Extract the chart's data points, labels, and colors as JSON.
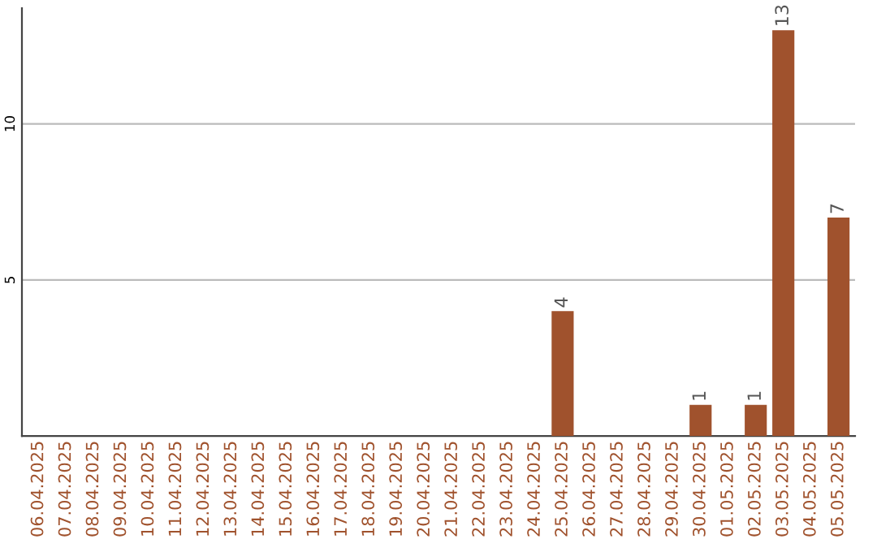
{
  "chart_data": {
    "type": "bar",
    "categories": [
      "06.04.2025",
      "07.04.2025",
      "08.04.2025",
      "09.04.2025",
      "10.04.2025",
      "11.04.2025",
      "12.04.2025",
      "13.04.2025",
      "14.04.2025",
      "15.04.2025",
      "16.04.2025",
      "17.04.2025",
      "18.04.2025",
      "19.04.2025",
      "20.04.2025",
      "21.04.2025",
      "22.04.2025",
      "23.04.2025",
      "24.04.2025",
      "25.04.2025",
      "26.04.2025",
      "27.04.2025",
      "28.04.2025",
      "29.04.2025",
      "30.04.2025",
      "01.05.2025",
      "02.05.2025",
      "03.05.2025",
      "04.05.2025",
      "05.05.2025"
    ],
    "values": [
      0,
      0,
      0,
      0,
      0,
      0,
      0,
      0,
      0,
      0,
      0,
      0,
      0,
      0,
      0,
      0,
      0,
      0,
      0,
      4,
      0,
      0,
      0,
      0,
      1,
      0,
      1,
      13,
      0,
      7
    ],
    "value_labels": [
      null,
      null,
      null,
      null,
      null,
      null,
      null,
      null,
      null,
      null,
      null,
      null,
      null,
      null,
      null,
      null,
      null,
      null,
      null,
      "4",
      null,
      null,
      null,
      null,
      "1",
      null,
      "1",
      "13",
      null,
      "7"
    ],
    "color": "#a0522d",
    "ylim": [
      0,
      13.7
    ],
    "yticks": [
      5,
      10
    ],
    "grid": "y"
  }
}
